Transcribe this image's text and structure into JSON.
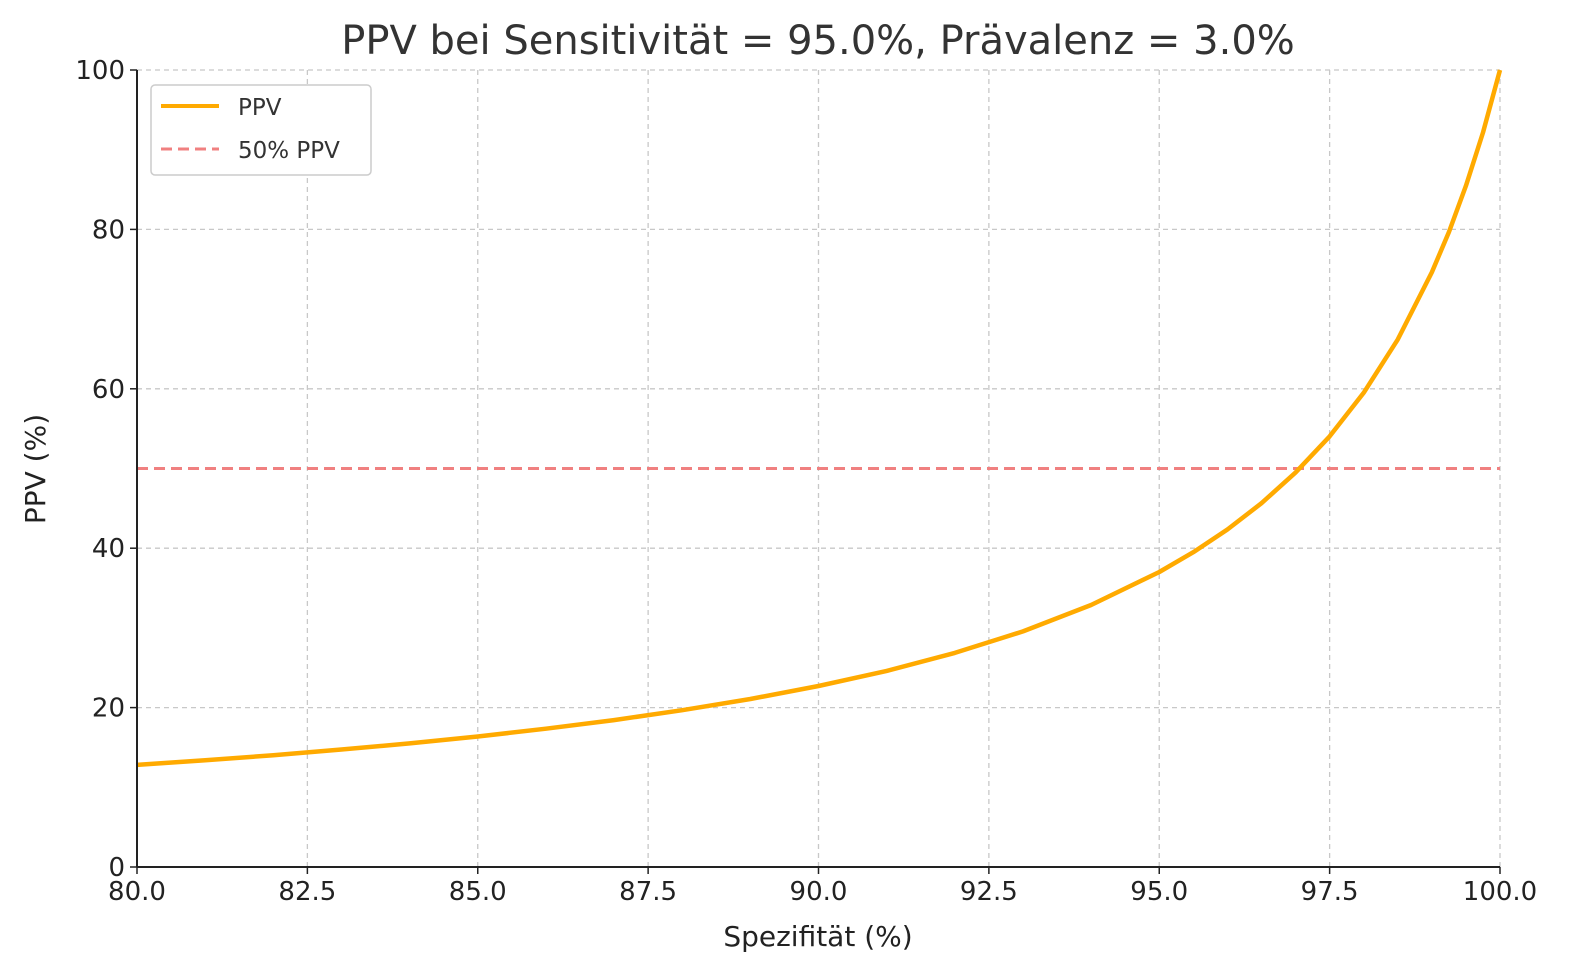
{
  "chart_data": {
    "type": "line",
    "title": "PPV bei Sensitivität = 95.0%, Prävalenz = 3.0%",
    "xlabel": "Spezifität (%)",
    "ylabel": "PPV (%)",
    "xlim": [
      80,
      100
    ],
    "ylim": [
      0,
      100
    ],
    "xticks": [
      "80.0",
      "82.5",
      "85.0",
      "87.5",
      "90.0",
      "92.5",
      "95.0",
      "97.5",
      "100.0"
    ],
    "xtick_values": [
      80,
      82.5,
      85,
      87.5,
      90,
      92.5,
      95,
      97.5,
      100
    ],
    "yticks": [
      "0",
      "20",
      "40",
      "60",
      "80",
      "100"
    ],
    "ytick_values": [
      0,
      20,
      40,
      60,
      80,
      100
    ],
    "grid": true,
    "legend_position": "top-left",
    "series": [
      {
        "name": "PPV",
        "color": "#FFAA00",
        "style": "solid",
        "x": [
          80,
          81,
          82,
          83,
          84,
          85,
          86,
          87,
          88,
          89,
          90,
          91,
          92,
          93,
          94,
          95,
          95.5,
          96,
          96.5,
          97,
          97.5,
          98,
          98.5,
          99,
          99.25,
          99.5,
          99.75,
          100
        ],
        "y": [
          12.81,
          13.39,
          14.03,
          14.74,
          15.51,
          16.38,
          17.35,
          18.43,
          19.67,
          21.08,
          22.71,
          24.61,
          26.86,
          29.56,
          32.87,
          37.01,
          39.5,
          42.35,
          45.64,
          49.48,
          54.03,
          59.5,
          66.2,
          74.61,
          79.66,
          85.46,
          92.16,
          100
        ]
      },
      {
        "name": "50% PPV",
        "color": "#F08080",
        "style": "dashed",
        "y_constant": 50
      }
    ]
  }
}
